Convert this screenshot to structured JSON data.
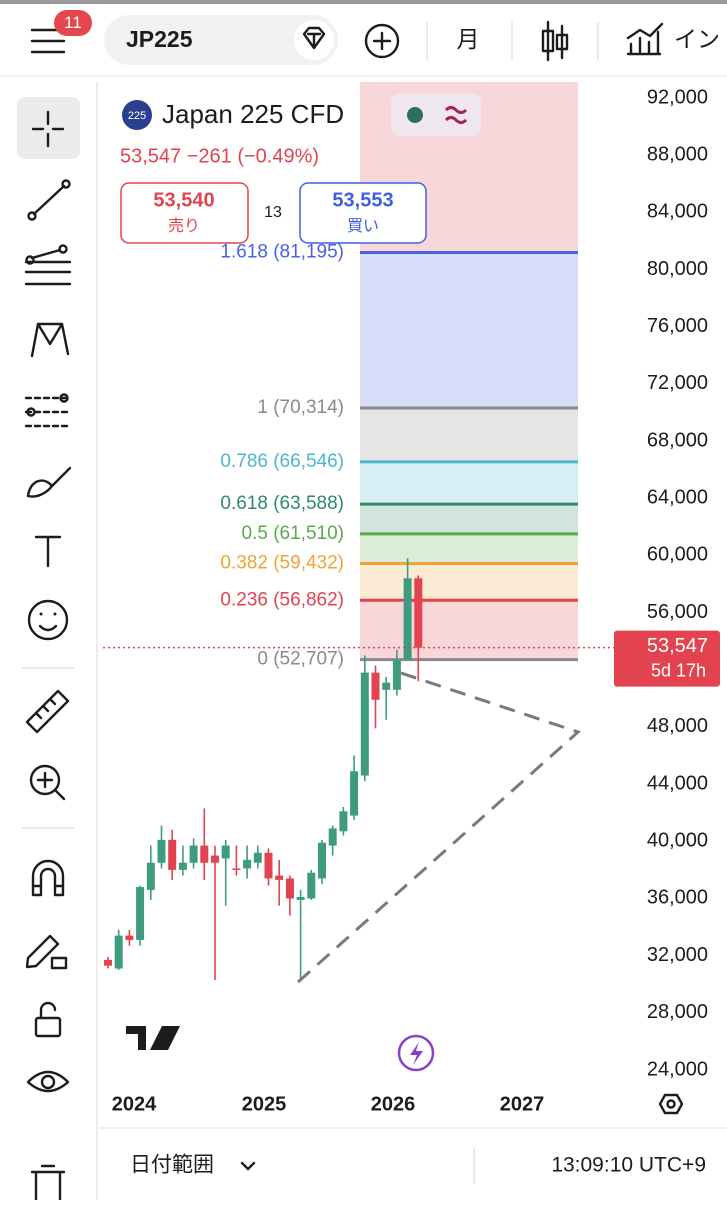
{
  "top_bar": {
    "badge": "11",
    "symbol": "JP225",
    "interval": "月",
    "indicators": "イン"
  },
  "symbol_header": {
    "icon": "225",
    "name": "Japan 225 CFD",
    "quote": "53,547 −261 (−0.49%)"
  },
  "order": {
    "sell_price": "53,540",
    "sell_label": "売り",
    "spread": "13",
    "buy_price": "53,553",
    "buy_label": "買い"
  },
  "chart": {
    "type": "candlestick",
    "up_color": "#3e9b80",
    "down_color": "#e2434f",
    "ylim": [
      22950,
      93120
    ],
    "yticks": [
      {
        "value": 92000,
        "label": "92,000"
      },
      {
        "value": 88000,
        "label": "88,000"
      },
      {
        "value": 84000,
        "label": "84,000"
      },
      {
        "value": 80000,
        "label": "80,000"
      },
      {
        "value": 76000,
        "label": "76,000"
      },
      {
        "value": 72000,
        "label": "72,000"
      },
      {
        "value": 68000,
        "label": "68,000"
      },
      {
        "value": 64000,
        "label": "64,000"
      },
      {
        "value": 60000,
        "label": "60,000"
      },
      {
        "value": 56000,
        "label": "56,000"
      },
      {
        "value": 48000,
        "label": "48,000"
      },
      {
        "value": 44000,
        "label": "44,000"
      },
      {
        "value": 40000,
        "label": "40,000"
      },
      {
        "value": 36000,
        "label": "36,000"
      },
      {
        "value": 32000,
        "label": "32,000"
      },
      {
        "value": 28000,
        "label": "28,000"
      },
      {
        "value": 24000,
        "label": "24,000"
      }
    ],
    "x_labels": [
      "2024",
      "2025",
      "2026",
      "2027"
    ],
    "candles": [
      {
        "open": 31700,
        "high": 31900,
        "low": 31100,
        "close": 31300
      },
      {
        "open": 31100,
        "high": 33800,
        "low": 31000,
        "close": 33400
      },
      {
        "open": 33400,
        "high": 33800,
        "low": 32700,
        "close": 33100
      },
      {
        "open": 33100,
        "high": 36900,
        "low": 32700,
        "close": 36800
      },
      {
        "open": 36600,
        "high": 39700,
        "low": 35900,
        "close": 38500
      },
      {
        "open": 38500,
        "high": 41100,
        "low": 38100,
        "close": 40100
      },
      {
        "open": 40100,
        "high": 40800,
        "low": 37300,
        "close": 38000
      },
      {
        "open": 38000,
        "high": 39700,
        "low": 37600,
        "close": 38500
      },
      {
        "open": 38500,
        "high": 40200,
        "low": 38100,
        "close": 39700
      },
      {
        "open": 39700,
        "high": 42300,
        "low": 37300,
        "close": 38500
      },
      {
        "open": 39000,
        "high": 39700,
        "low": 30300,
        "close": 38500
      },
      {
        "open": 38800,
        "high": 40100,
        "low": 35500,
        "close": 39700
      },
      {
        "open": 38100,
        "high": 39700,
        "low": 37600,
        "close": 38000
      },
      {
        "open": 38100,
        "high": 39700,
        "low": 37400,
        "close": 38700
      },
      {
        "open": 38500,
        "high": 39700,
        "low": 38100,
        "close": 39200
      },
      {
        "open": 39200,
        "high": 39500,
        "low": 36900,
        "close": 37400
      },
      {
        "open": 37600,
        "high": 38700,
        "low": 35500,
        "close": 37300
      },
      {
        "open": 37400,
        "high": 37600,
        "low": 34800,
        "close": 36000
      },
      {
        "open": 35900,
        "high": 36600,
        "low": 30200,
        "close": 36100
      },
      {
        "open": 36000,
        "high": 38000,
        "low": 35900,
        "close": 37800
      },
      {
        "open": 37400,
        "high": 40100,
        "low": 37000,
        "close": 39900
      },
      {
        "open": 39700,
        "high": 41100,
        "low": 39000,
        "close": 40900
      },
      {
        "open": 40700,
        "high": 42400,
        "low": 40400,
        "close": 42100
      },
      {
        "open": 41800,
        "high": 46000,
        "low": 41500,
        "close": 44900
      },
      {
        "open": 44600,
        "high": 53000,
        "low": 44200,
        "close": 51800
      },
      {
        "open": 51800,
        "high": 52300,
        "low": 47900,
        "close": 49900
      },
      {
        "open": 50600,
        "high": 51500,
        "low": 48500,
        "close": 51100
      },
      {
        "open": 50600,
        "high": 53400,
        "low": 50200,
        "close": 52700
      },
      {
        "open": 52700,
        "high": 59800,
        "low": 52700,
        "close": 58400
      },
      {
        "open": 58400,
        "high": 58600,
        "low": 51200,
        "close": 53547
      }
    ],
    "fib_levels": [
      {
        "label": "1.618 (81,195)",
        "value": 81195,
        "color": "#4a62e0"
      },
      {
        "label": "1 (70,314)",
        "value": 70314,
        "color": "#8a8a8e"
      },
      {
        "label": "0.786 (66,546)",
        "value": 66546,
        "color": "#4bb7cf"
      },
      {
        "label": "0.618 (63,588)",
        "value": 63588,
        "color": "#2f8a66"
      },
      {
        "label": "0.5 (61,510)",
        "value": 61510,
        "color": "#5aa94a"
      },
      {
        "label": "0.382 (59,432)",
        "value": 59432,
        "color": "#efa339"
      },
      {
        "label": "0.236 (56,862)",
        "value": 56862,
        "color": "#e2434f"
      },
      {
        "label": "0 (52,707)",
        "value": 52707,
        "color": "#8a8a8e"
      }
    ],
    "last_price": {
      "value": 53547,
      "label": "53,547"
    },
    "countdown": "5d 17h"
  },
  "bottom_bar": {
    "date_range": "日付範囲",
    "time": "13:09:10 UTC+9"
  }
}
